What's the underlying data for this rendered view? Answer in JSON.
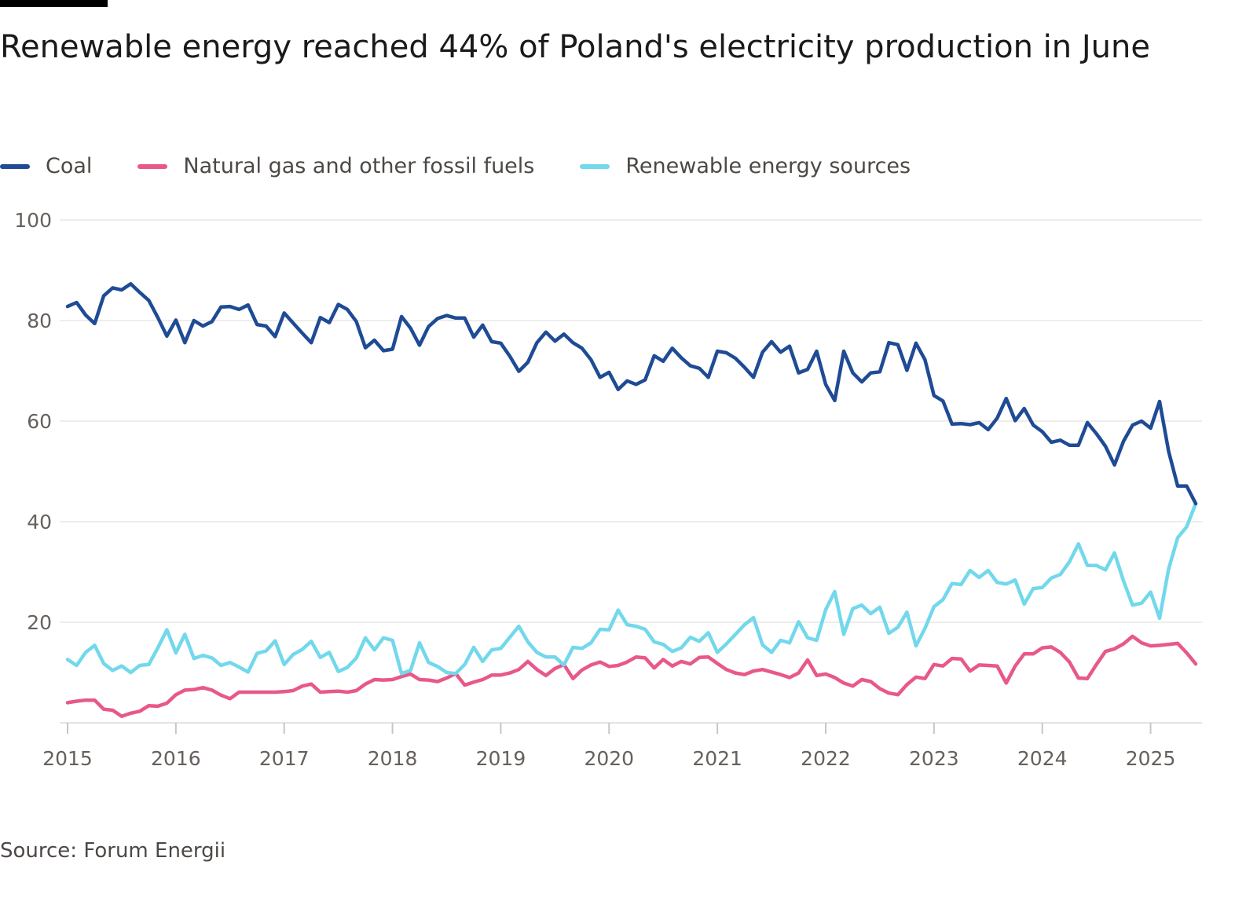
{
  "title": "Renewable energy reached 44% of Poland's electricity production in June",
  "source": "Source: Forum Energii",
  "chart_data": {
    "type": "line",
    "title": "Renewable energy reached 44% of Poland's electricity production in June",
    "xlabel": "",
    "ylabel": "",
    "x_ticks": [
      "2015",
      "2016",
      "2017",
      "2018",
      "2019",
      "2020",
      "2021",
      "2022",
      "2023",
      "2024",
      "2025"
    ],
    "y_ticks": [
      20,
      40,
      60,
      80,
      100
    ],
    "ylim": [
      0,
      100
    ],
    "xlim": [
      "2015-01",
      "2025-06"
    ],
    "grid": true,
    "legend_position": "top-left",
    "x": [
      "2015-01",
      "2015-02",
      "2015-03",
      "2015-04",
      "2015-05",
      "2015-06",
      "2015-07",
      "2015-08",
      "2015-09",
      "2015-10",
      "2015-11",
      "2015-12",
      "2016-01",
      "2016-02",
      "2016-03",
      "2016-04",
      "2016-05",
      "2016-06",
      "2016-07",
      "2016-08",
      "2016-09",
      "2016-10",
      "2016-11",
      "2016-12",
      "2017-01",
      "2017-02",
      "2017-03",
      "2017-04",
      "2017-05",
      "2017-06",
      "2017-07",
      "2017-08",
      "2017-09",
      "2017-10",
      "2017-11",
      "2017-12",
      "2018-01",
      "2018-02",
      "2018-03",
      "2018-04",
      "2018-05",
      "2018-06",
      "2018-07",
      "2018-08",
      "2018-09",
      "2018-10",
      "2018-11",
      "2018-12",
      "2019-01",
      "2019-02",
      "2019-03",
      "2019-04",
      "2019-05",
      "2019-06",
      "2019-07",
      "2019-08",
      "2019-09",
      "2019-10",
      "2019-11",
      "2019-12",
      "2020-01",
      "2020-02",
      "2020-03",
      "2020-04",
      "2020-05",
      "2020-06",
      "2020-07",
      "2020-08",
      "2020-09",
      "2020-10",
      "2020-11",
      "2020-12",
      "2021-01",
      "2021-02",
      "2021-03",
      "2021-04",
      "2021-05",
      "2021-06",
      "2021-07",
      "2021-08",
      "2021-09",
      "2021-10",
      "2021-11",
      "2021-12",
      "2022-01",
      "2022-02",
      "2022-03",
      "2022-04",
      "2022-05",
      "2022-06",
      "2022-07",
      "2022-08",
      "2022-09",
      "2022-10",
      "2022-11",
      "2022-12",
      "2023-01",
      "2023-02",
      "2023-03",
      "2023-04",
      "2023-05",
      "2023-06",
      "2023-07",
      "2023-08",
      "2023-09",
      "2023-10",
      "2023-11",
      "2023-12",
      "2024-01",
      "2024-02",
      "2024-03",
      "2024-04",
      "2024-05",
      "2024-06",
      "2024-07",
      "2024-08",
      "2024-09",
      "2024-10",
      "2024-11",
      "2024-12",
      "2025-01",
      "2025-02",
      "2025-03",
      "2025-04",
      "2025-05",
      "2025-06"
    ],
    "series": [
      {
        "name": "Coal",
        "color": "#1f4b95",
        "values": [
          82.8,
          83.6,
          81.1,
          79.4,
          84.9,
          86.5,
          86.1,
          87.3,
          85.6,
          84.0,
          80.6,
          76.9,
          80.1,
          75.6,
          80.0,
          78.9,
          79.8,
          82.7,
          82.8,
          82.2,
          83.1,
          79.2,
          78.9,
          76.8,
          81.5,
          79.5,
          77.5,
          75.6,
          80.6,
          79.6,
          83.2,
          82.2,
          79.8,
          74.6,
          76.1,
          74.0,
          74.3,
          80.8,
          78.5,
          75.1,
          78.8,
          80.4,
          81.0,
          80.5,
          80.5,
          76.7,
          79.1,
          75.8,
          75.5,
          72.9,
          69.9,
          71.7,
          75.6,
          77.7,
          75.9,
          77.3,
          75.6,
          74.5,
          72.2,
          68.7,
          69.7,
          66.3,
          68.0,
          67.3,
          68.2,
          73.0,
          71.9,
          74.5,
          72.6,
          71.0,
          70.5,
          68.7,
          73.9,
          73.6,
          72.5,
          70.7,
          68.7,
          73.7,
          75.8,
          73.7,
          74.9,
          69.6,
          70.3,
          73.9,
          67.3,
          64.1,
          73.9,
          69.6,
          67.8,
          69.6,
          69.8,
          75.6,
          75.2,
          70.1,
          75.5,
          72.2,
          65.1,
          64.0,
          59.4,
          59.5,
          59.3,
          59.7,
          58.3,
          60.6,
          64.5,
          60.1,
          62.5,
          59.2,
          57.9,
          55.8,
          56.2,
          55.2,
          55.2,
          59.7,
          57.5,
          55.0,
          51.3,
          56.0,
          59.2,
          60.0,
          58.6,
          63.9,
          54.0,
          47.1,
          47.1,
          43.6
        ]
      },
      {
        "name": "Natural gas and other fossil fuels",
        "color": "#e8588a",
        "values": [
          4.0,
          4.3,
          4.5,
          4.5,
          2.7,
          2.5,
          1.3,
          1.9,
          2.3,
          3.4,
          3.3,
          3.9,
          5.6,
          6.5,
          6.6,
          7.0,
          6.5,
          5.5,
          4.8,
          6.1,
          6.1,
          6.1,
          6.1,
          6.1,
          6.2,
          6.4,
          7.3,
          7.7,
          6.1,
          6.2,
          6.3,
          6.1,
          6.4,
          7.7,
          8.6,
          8.5,
          8.6,
          9.2,
          9.7,
          8.6,
          8.5,
          8.2,
          8.9,
          9.8,
          7.5,
          8.1,
          8.6,
          9.5,
          9.5,
          9.9,
          10.6,
          12.2,
          10.6,
          9.4,
          10.8,
          11.6,
          8.8,
          10.5,
          11.5,
          12.1,
          11.2,
          11.4,
          12.1,
          13.1,
          12.9,
          10.9,
          12.6,
          11.3,
          12.2,
          11.7,
          13.0,
          13.1,
          11.8,
          10.6,
          9.9,
          9.6,
          10.3,
          10.6,
          10.1,
          9.6,
          9.0,
          9.9,
          12.5,
          9.4,
          9.7,
          9.0,
          7.9,
          7.3,
          8.6,
          8.2,
          6.8,
          5.9,
          5.6,
          7.6,
          9.1,
          8.8,
          11.6,
          11.3,
          12.8,
          12.7,
          10.3,
          11.5,
          11.4,
          11.3,
          7.9,
          11.3,
          13.7,
          13.7,
          14.9,
          15.1,
          14.0,
          12.1,
          8.9,
          8.8,
          11.6,
          14.2,
          14.7,
          15.7,
          17.2,
          15.9,
          15.3,
          15.4,
          15.6,
          15.8,
          13.9,
          11.7
        ]
      },
      {
        "name": "Renewable energy sources",
        "color": "#72d8ec",
        "values": [
          12.6,
          11.4,
          14.0,
          15.4,
          11.8,
          10.4,
          11.3,
          10.0,
          11.4,
          11.6,
          14.9,
          18.5,
          13.9,
          17.6,
          12.8,
          13.4,
          12.9,
          11.4,
          12.0,
          11.1,
          10.1,
          13.8,
          14.3,
          16.3,
          11.6,
          13.6,
          14.6,
          16.2,
          13.0,
          14.0,
          10.2,
          11.0,
          12.9,
          16.9,
          14.5,
          16.9,
          16.4,
          9.8,
          10.4,
          15.9,
          12.0,
          11.2,
          10.0,
          9.8,
          11.6,
          15.0,
          12.2,
          14.5,
          14.8,
          17.0,
          19.2,
          16.1,
          14.0,
          13.1,
          13.1,
          11.5,
          15.0,
          14.8,
          15.9,
          18.6,
          18.5,
          22.4,
          19.5,
          19.2,
          18.6,
          16.1,
          15.6,
          14.2,
          14.9,
          17.0,
          16.2,
          17.9,
          14.0,
          15.7,
          17.6,
          19.5,
          20.9,
          15.5,
          14.0,
          16.4,
          15.9,
          20.1,
          16.9,
          16.4,
          22.5,
          26.1,
          17.6,
          22.7,
          23.4,
          21.7,
          23.0,
          17.8,
          19.0,
          22.0,
          15.3,
          18.8,
          23.1,
          24.5,
          27.7,
          27.5,
          30.3,
          28.9,
          30.3,
          27.9,
          27.6,
          28.4,
          23.6,
          26.7,
          26.9,
          28.8,
          29.5,
          32.0,
          35.6,
          31.3,
          31.3,
          30.4,
          33.8,
          28.2,
          23.4,
          23.8,
          26.0,
          20.8,
          30.6,
          36.8,
          39.0,
          43.6
        ]
      }
    ]
  }
}
